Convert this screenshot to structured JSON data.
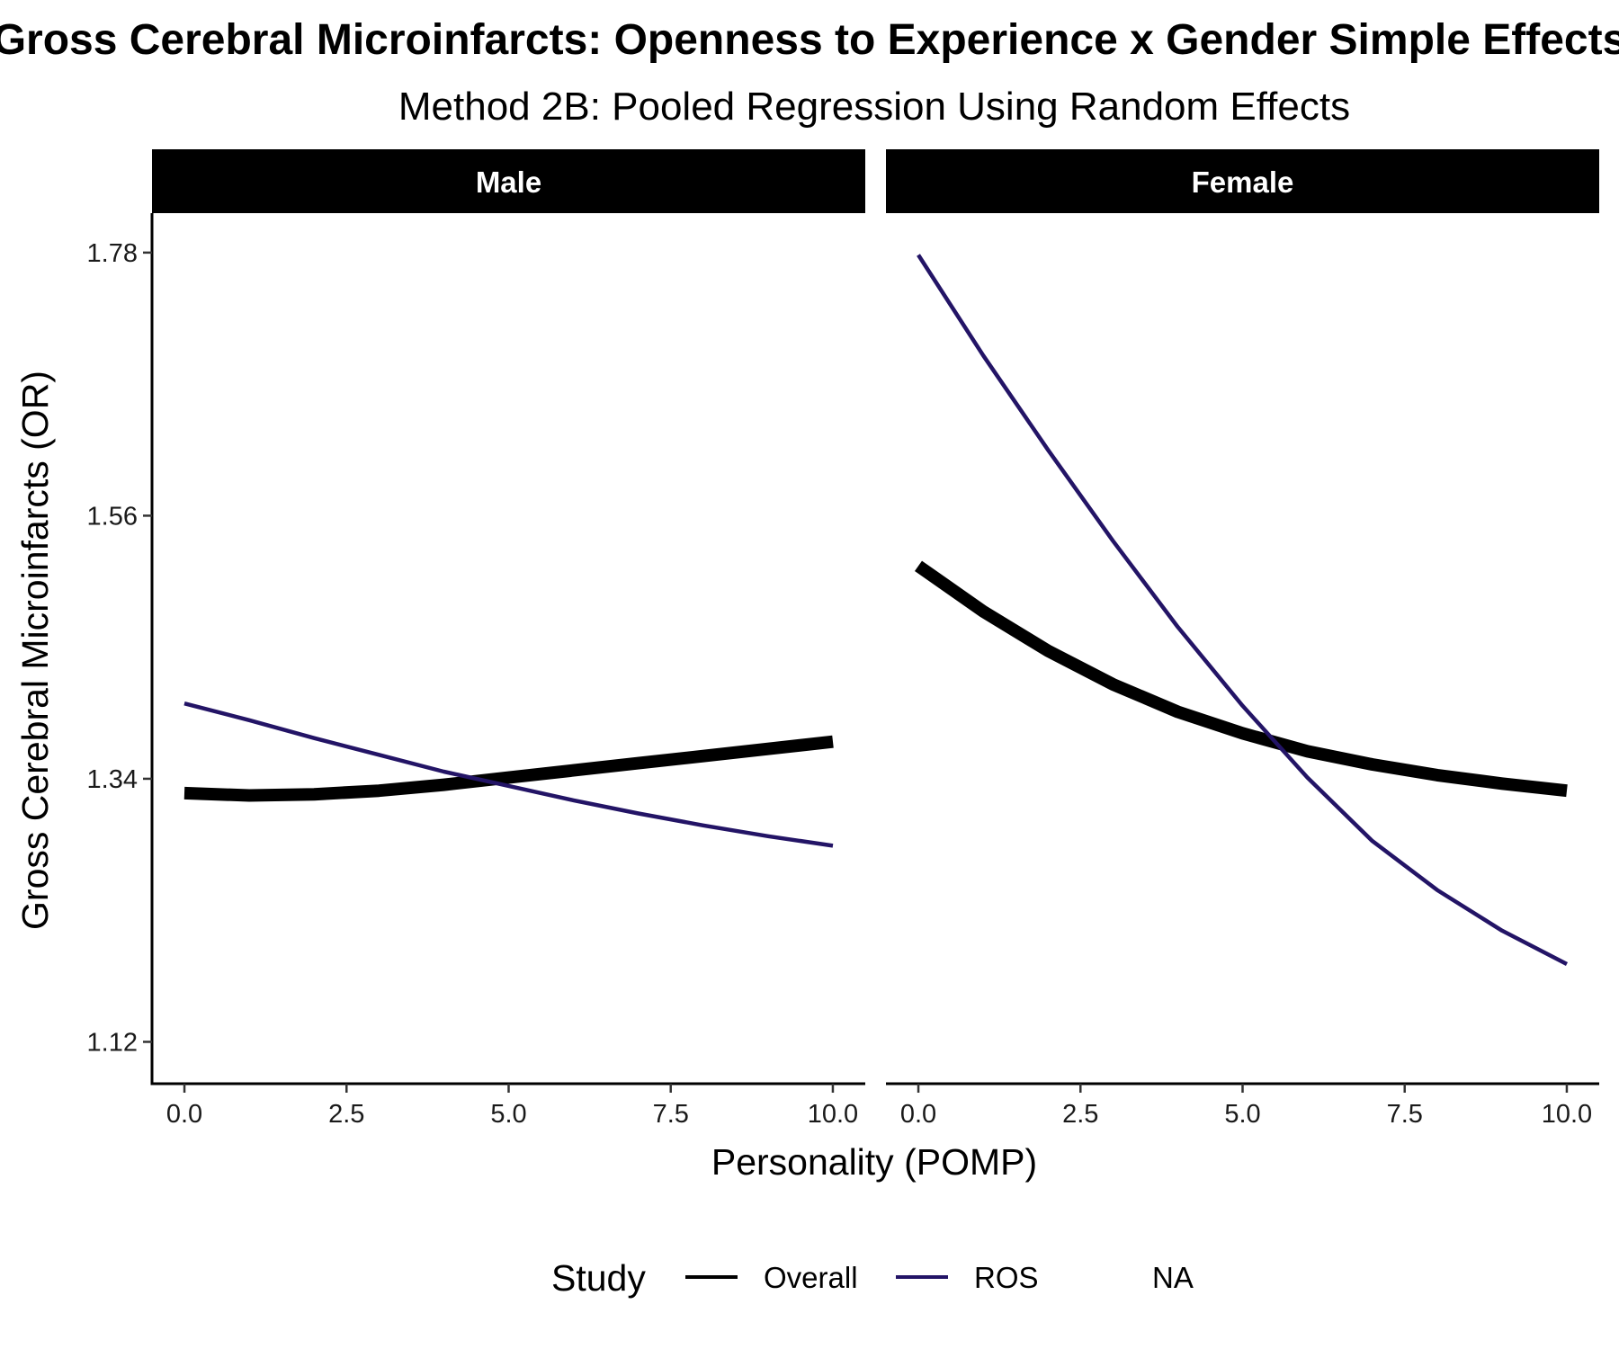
{
  "chart_data": {
    "type": "line",
    "title": "Gross Cerebral Microinfarcts: Openness to Experience x Gender Simple Effects",
    "subtitle": "Method 2B: Pooled Regression Using Random Effects",
    "xlabel": "Personality (POMP)",
    "ylabel": "Gross Cerebral Microinfarcts (OR)",
    "xlim": [
      -0.5,
      10.5
    ],
    "ylim": [
      1.085,
      1.813
    ],
    "x_ticks": [
      "0.0",
      "2.5",
      "5.0",
      "7.5",
      "10.0"
    ],
    "y_ticks": [
      "1.12",
      "1.34",
      "1.56",
      "1.78"
    ],
    "grid": false,
    "legend": {
      "title": "Study",
      "position": "bottom",
      "entries": [
        "Overall",
        "ROS",
        "NA"
      ]
    },
    "colors": {
      "Overall": "#000000",
      "ROS": "#231466",
      "strip_bg": "#000000",
      "strip_text": "#ffffff"
    },
    "panels": [
      {
        "label": "Male",
        "series": [
          {
            "name": "Overall",
            "x": [
              0,
              1,
              2,
              3,
              4,
              5,
              6,
              7,
              8,
              9,
              10
            ],
            "y": [
              1.328,
              1.326,
              1.327,
              1.33,
              1.335,
              1.341,
              1.347,
              1.353,
              1.359,
              1.365,
              1.371
            ]
          },
          {
            "name": "ROS",
            "x": [
              0,
              1,
              2,
              3,
              4,
              5,
              6,
              7,
              8,
              9,
              10
            ],
            "y": [
              1.403,
              1.389,
              1.374,
              1.36,
              1.346,
              1.334,
              1.322,
              1.311,
              1.301,
              1.292,
              1.284
            ]
          }
        ]
      },
      {
        "label": "Female",
        "series": [
          {
            "name": "Overall",
            "x": [
              0,
              1,
              2,
              3,
              4,
              5,
              6,
              7,
              8,
              9,
              10
            ],
            "y": [
              1.518,
              1.48,
              1.447,
              1.419,
              1.396,
              1.378,
              1.363,
              1.352,
              1.343,
              1.336,
              1.33
            ]
          },
          {
            "name": "ROS",
            "x": [
              0,
              1,
              2,
              3,
              4,
              5,
              6,
              7,
              8,
              9,
              10
            ],
            "y": [
              1.778,
              1.694,
              1.615,
              1.539,
              1.467,
              1.401,
              1.341,
              1.288,
              1.247,
              1.213,
              1.185
            ]
          }
        ]
      }
    ]
  }
}
